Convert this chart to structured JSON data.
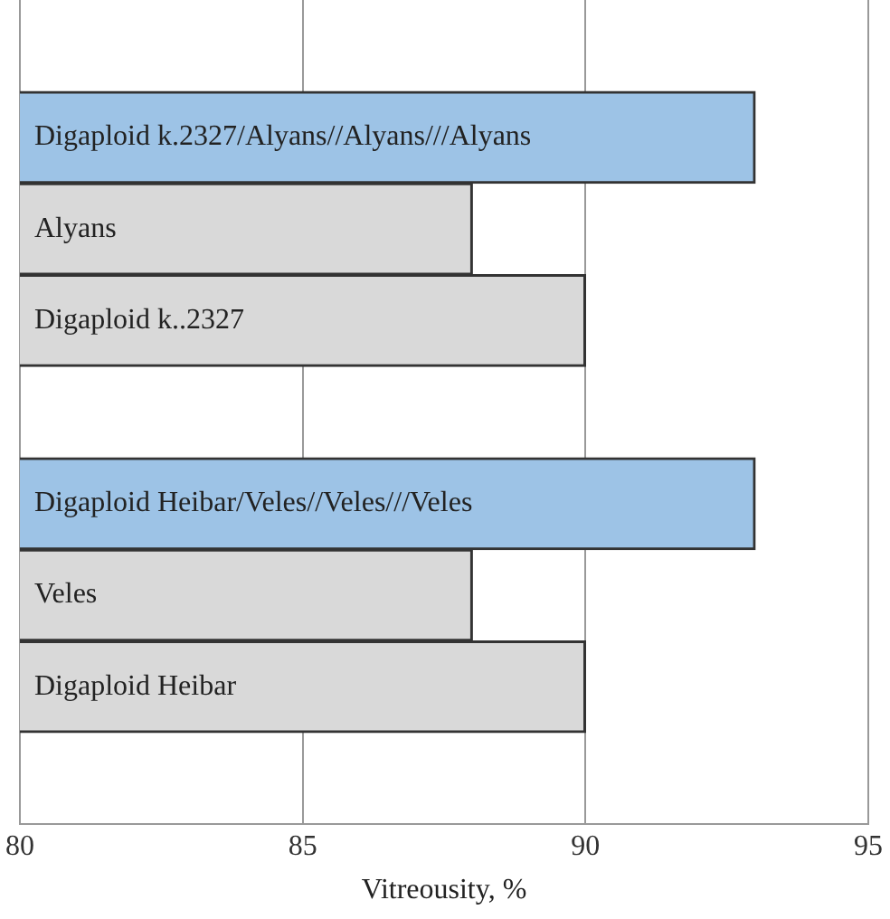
{
  "chart_data": {
    "type": "bar",
    "orientation": "horizontal",
    "xlabel": "Vitreousity, %",
    "categories": [
      null,
      "Digaploid k.2327/Alyans//Alyans///Alyans",
      "Alyans",
      "Digaploid k..2327",
      null,
      "Digaploid Heibar/Veles//Veles///Veles",
      "Veles",
      "Digaploid Heibar",
      null
    ],
    "values": [
      null,
      93,
      88,
      90,
      null,
      93,
      88,
      90,
      null
    ],
    "colors": [
      null,
      "#9dc3e6",
      "#d9d9d9",
      "#d9d9d9",
      null,
      "#9dc3e6",
      "#d9d9d9",
      "#d9d9d9",
      null
    ],
    "xlim": [
      80,
      95
    ],
    "xticks": [
      80,
      85,
      90,
      95
    ],
    "grid": "x",
    "legend": false
  }
}
